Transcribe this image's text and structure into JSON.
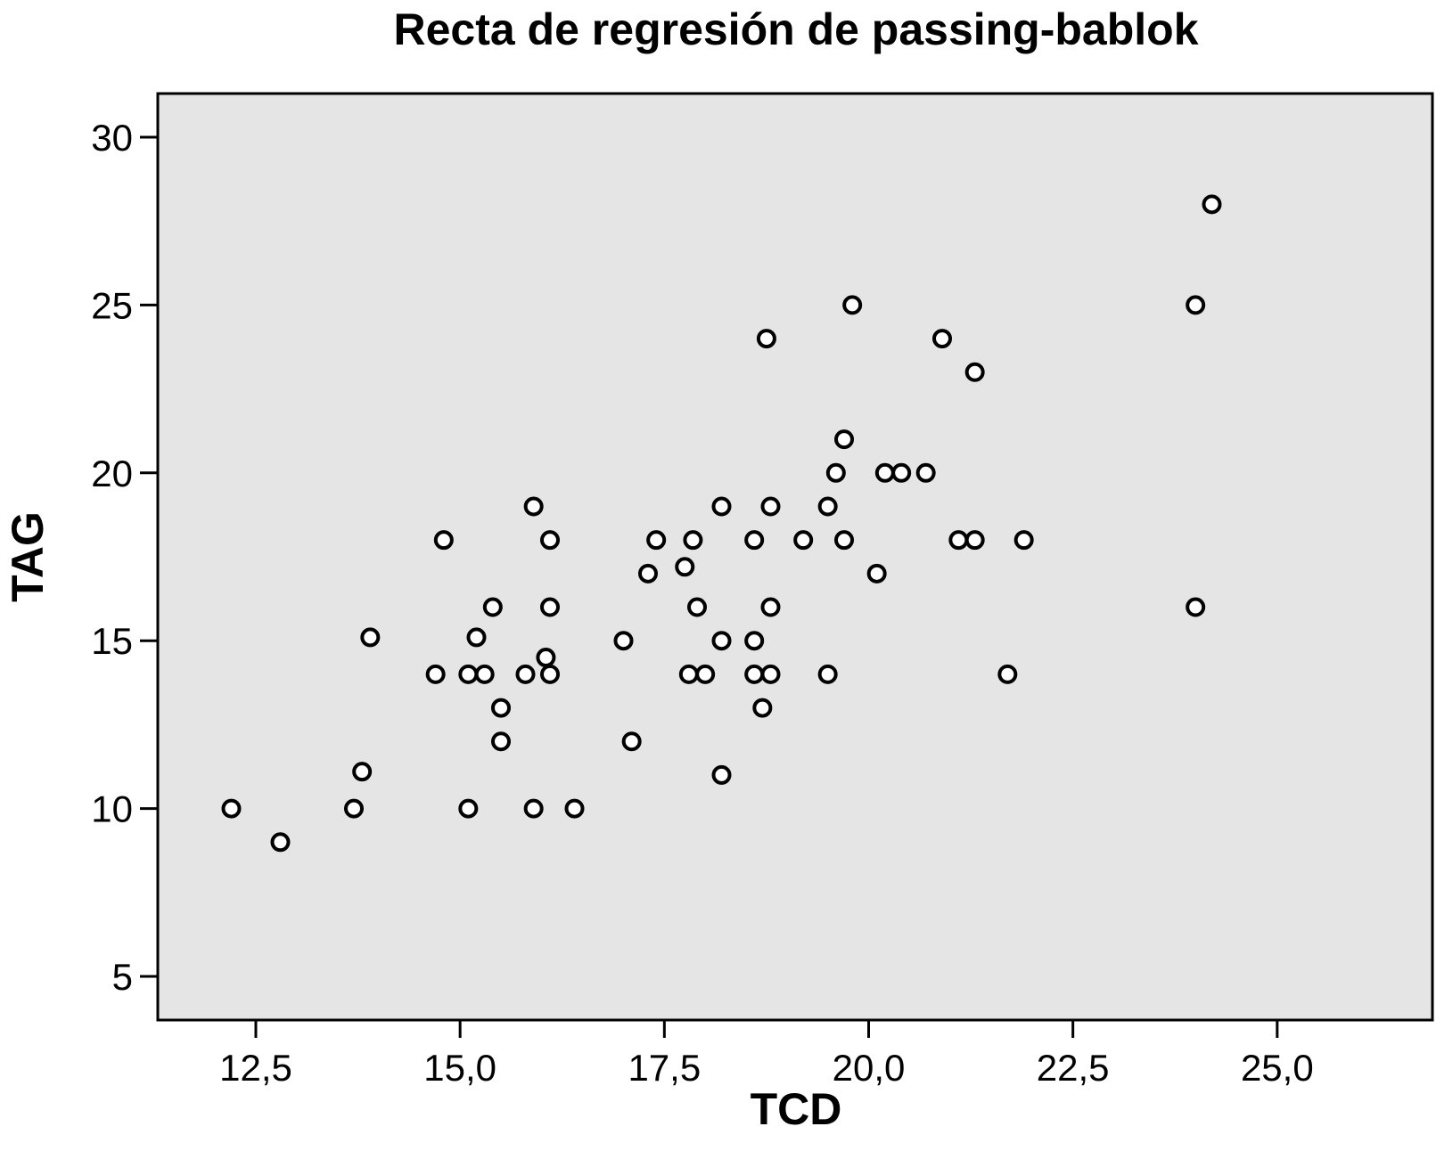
{
  "chart_data": {
    "type": "scatter",
    "title": "Recta de regresión de passing-bablok",
    "xlabel": "TCD",
    "ylabel": "TAG",
    "xlim": [
      11.3,
      26.9
    ],
    "ylim": [
      3.7,
      31.3
    ],
    "xticks": [
      12.5,
      15.0,
      17.5,
      20.0,
      22.5,
      25.0
    ],
    "xtick_labels": [
      "12,5",
      "15,0",
      "17,5",
      "20,0",
      "22,5",
      "25,0"
    ],
    "yticks": [
      5,
      10,
      15,
      20,
      25,
      30
    ],
    "ytick_labels": [
      "5",
      "10",
      "15",
      "20",
      "25",
      "30"
    ],
    "grid": false,
    "plot_background": "#e5e5e5",
    "marker_color": "#000000",
    "points": [
      [
        12.2,
        10
      ],
      [
        12.8,
        9
      ],
      [
        13.7,
        10
      ],
      [
        13.8,
        11.1
      ],
      [
        13.9,
        15.1
      ],
      [
        14.7,
        14
      ],
      [
        14.8,
        18
      ],
      [
        15.1,
        14
      ],
      [
        15.1,
        10
      ],
      [
        15.2,
        15.1
      ],
      [
        15.3,
        14
      ],
      [
        15.4,
        16
      ],
      [
        15.5,
        13
      ],
      [
        15.5,
        12
      ],
      [
        15.8,
        14
      ],
      [
        15.9,
        19
      ],
      [
        15.9,
        10
      ],
      [
        16.05,
        14.5
      ],
      [
        16.1,
        18
      ],
      [
        16.1,
        16
      ],
      [
        16.1,
        14
      ],
      [
        16.4,
        10
      ],
      [
        17.0,
        15
      ],
      [
        17.1,
        12
      ],
      [
        17.3,
        17
      ],
      [
        17.4,
        18
      ],
      [
        17.75,
        17.2
      ],
      [
        17.8,
        14
      ],
      [
        17.85,
        18
      ],
      [
        17.9,
        16
      ],
      [
        18.0,
        14
      ],
      [
        18.2,
        19
      ],
      [
        18.2,
        15
      ],
      [
        18.2,
        11
      ],
      [
        18.6,
        18
      ],
      [
        18.6,
        15
      ],
      [
        18.6,
        14
      ],
      [
        18.7,
        13
      ],
      [
        18.75,
        24
      ],
      [
        18.8,
        19
      ],
      [
        18.8,
        16
      ],
      [
        18.8,
        14
      ],
      [
        19.2,
        18
      ],
      [
        19.5,
        19
      ],
      [
        19.5,
        14
      ],
      [
        19.6,
        20
      ],
      [
        19.7,
        21
      ],
      [
        19.7,
        18
      ],
      [
        19.8,
        25
      ],
      [
        20.1,
        17
      ],
      [
        20.2,
        20
      ],
      [
        20.4,
        20
      ],
      [
        20.7,
        20
      ],
      [
        20.9,
        24
      ],
      [
        21.1,
        18
      ],
      [
        21.3,
        23
      ],
      [
        21.3,
        18
      ],
      [
        21.7,
        14
      ],
      [
        21.9,
        18
      ],
      [
        24.0,
        25
      ],
      [
        24.0,
        16
      ],
      [
        24.2,
        28
      ]
    ]
  }
}
